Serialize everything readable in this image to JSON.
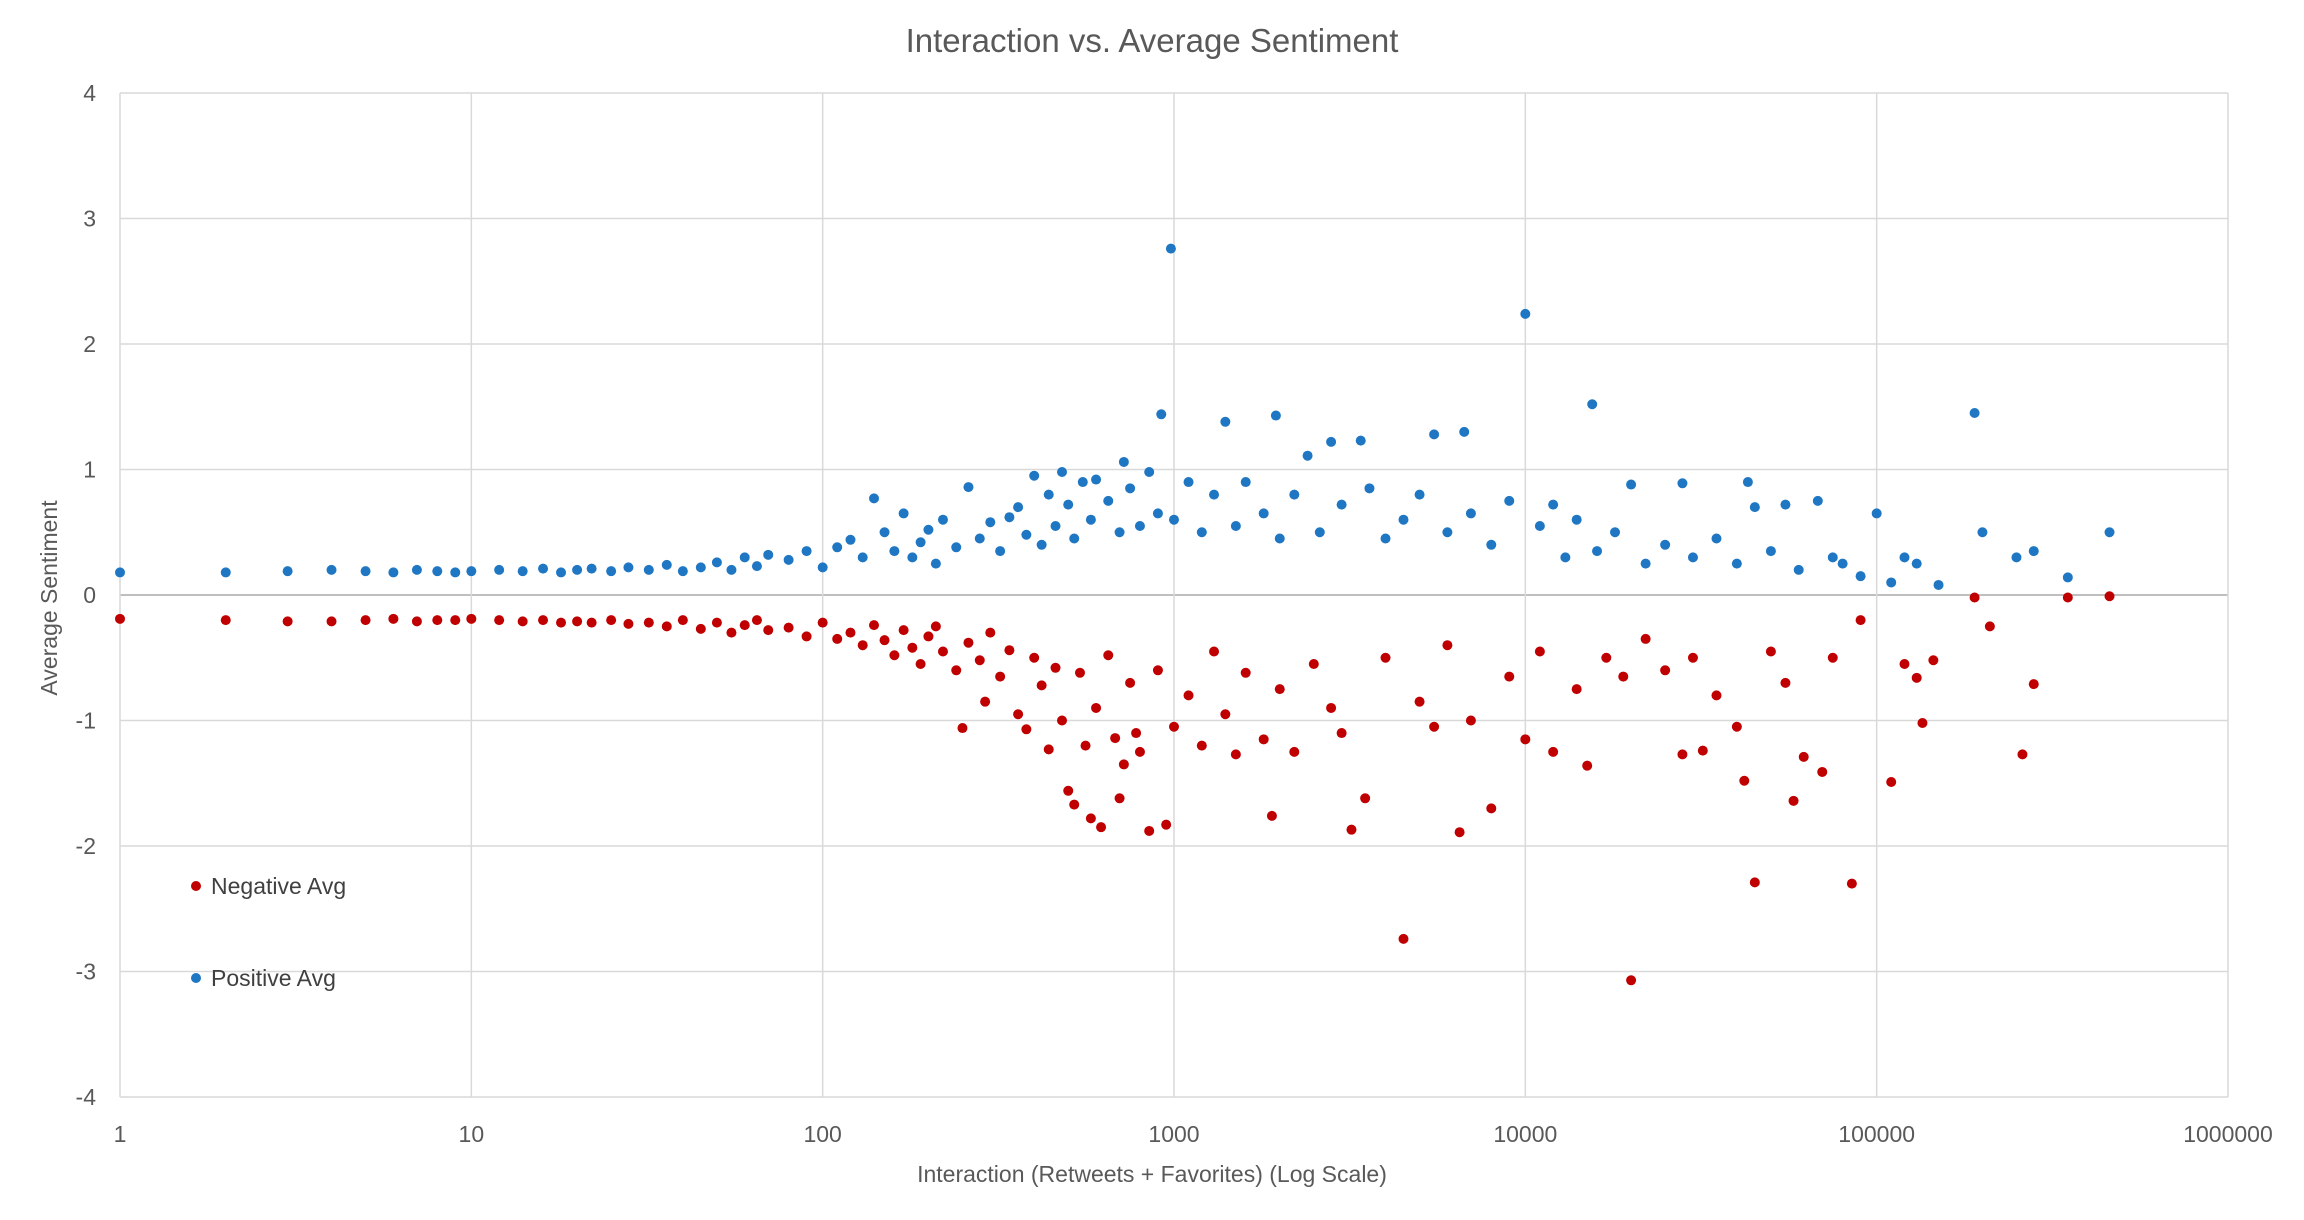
{
  "chart_data": {
    "type": "scatter",
    "title": "Interaction vs. Average Sentiment",
    "xlabel": "Interaction (Retweets + Favorites) (Log Scale)",
    "ylabel": "Average Sentiment",
    "x_scale": "log",
    "xlim": [
      1,
      1000000
    ],
    "ylim": [
      -4,
      4
    ],
    "x_ticks": [
      "1",
      "10",
      "100",
      "1000",
      "10000",
      "100000",
      "1000000"
    ],
    "y_ticks": [
      "4",
      "3",
      "2",
      "1",
      "0",
      "-1",
      "-2",
      "-3",
      "-4"
    ],
    "grid": true,
    "legend_position": "bottom-left",
    "series": [
      {
        "name": "Negative Avg",
        "color": "#c00000",
        "points": [
          [
            1,
            -0.19
          ],
          [
            2,
            -0.2
          ],
          [
            3,
            -0.21
          ],
          [
            4,
            -0.21
          ],
          [
            5,
            -0.2
          ],
          [
            6,
            -0.19
          ],
          [
            7,
            -0.21
          ],
          [
            8,
            -0.2
          ],
          [
            9,
            -0.2
          ],
          [
            10,
            -0.19
          ],
          [
            12,
            -0.2
          ],
          [
            14,
            -0.21
          ],
          [
            16,
            -0.2
          ],
          [
            18,
            -0.22
          ],
          [
            20,
            -0.21
          ],
          [
            22,
            -0.22
          ],
          [
            25,
            -0.2
          ],
          [
            28,
            -0.23
          ],
          [
            32,
            -0.22
          ],
          [
            36,
            -0.25
          ],
          [
            40,
            -0.2
          ],
          [
            45,
            -0.27
          ],
          [
            50,
            -0.22
          ],
          [
            55,
            -0.3
          ],
          [
            60,
            -0.24
          ],
          [
            65,
            -0.2
          ],
          [
            70,
            -0.28
          ],
          [
            80,
            -0.26
          ],
          [
            90,
            -0.33
          ],
          [
            100,
            -0.22
          ],
          [
            110,
            -0.35
          ],
          [
            120,
            -0.3
          ],
          [
            130,
            -0.4
          ],
          [
            140,
            -0.24
          ],
          [
            150,
            -0.36
          ],
          [
            160,
            -0.48
          ],
          [
            170,
            -0.28
          ],
          [
            180,
            -0.42
          ],
          [
            190,
            -0.55
          ],
          [
            200,
            -0.33
          ],
          [
            210,
            -0.25
          ],
          [
            220,
            -0.45
          ],
          [
            240,
            -0.6
          ],
          [
            250,
            -1.06
          ],
          [
            260,
            -0.38
          ],
          [
            280,
            -0.52
          ],
          [
            290,
            -0.85
          ],
          [
            300,
            -0.3
          ],
          [
            320,
            -0.65
          ],
          [
            340,
            -0.44
          ],
          [
            360,
            -0.95
          ],
          [
            380,
            -1.07
          ],
          [
            400,
            -0.5
          ],
          [
            420,
            -0.72
          ],
          [
            440,
            -1.23
          ],
          [
            460,
            -0.58
          ],
          [
            480,
            -1.0
          ],
          [
            500,
            -1.56
          ],
          [
            520,
            -1.67
          ],
          [
            540,
            -0.62
          ],
          [
            560,
            -1.2
          ],
          [
            580,
            -1.78
          ],
          [
            600,
            -0.9
          ],
          [
            620,
            -1.85
          ],
          [
            650,
            -0.48
          ],
          [
            680,
            -1.14
          ],
          [
            700,
            -1.62
          ],
          [
            720,
            -1.35
          ],
          [
            750,
            -0.7
          ],
          [
            780,
            -1.1
          ],
          [
            800,
            -1.25
          ],
          [
            850,
            -1.88
          ],
          [
            900,
            -0.6
          ],
          [
            950,
            -1.83
          ],
          [
            1000,
            -1.05
          ],
          [
            1100,
            -0.8
          ],
          [
            1200,
            -1.2
          ],
          [
            1300,
            -0.45
          ],
          [
            1400,
            -0.95
          ],
          [
            1500,
            -1.27
          ],
          [
            1600,
            -0.62
          ],
          [
            1800,
            -1.15
          ],
          [
            1900,
            -1.76
          ],
          [
            2000,
            -0.75
          ],
          [
            2200,
            -1.25
          ],
          [
            2500,
            -0.55
          ],
          [
            2800,
            -0.9
          ],
          [
            3000,
            -1.1
          ],
          [
            3200,
            -1.87
          ],
          [
            3500,
            -1.62
          ],
          [
            4000,
            -0.5
          ],
          [
            4500,
            -2.74
          ],
          [
            5000,
            -0.85
          ],
          [
            5500,
            -1.05
          ],
          [
            6000,
            -0.4
          ],
          [
            6500,
            -1.89
          ],
          [
            7000,
            -1.0
          ],
          [
            8000,
            -1.7
          ],
          [
            9000,
            -0.65
          ],
          [
            10000,
            -1.15
          ],
          [
            11000,
            -0.45
          ],
          [
            12000,
            -1.25
          ],
          [
            14000,
            -0.75
          ],
          [
            15000,
            -1.36
          ],
          [
            17000,
            -0.5
          ],
          [
            19000,
            -0.65
          ],
          [
            20000,
            -3.07
          ],
          [
            22000,
            -0.35
          ],
          [
            25000,
            -0.6
          ],
          [
            28000,
            -1.27
          ],
          [
            30000,
            -0.5
          ],
          [
            32000,
            -1.24
          ],
          [
            35000,
            -0.8
          ],
          [
            40000,
            -1.05
          ],
          [
            42000,
            -1.48
          ],
          [
            45000,
            -2.29
          ],
          [
            50000,
            -0.45
          ],
          [
            55000,
            -0.7
          ],
          [
            58000,
            -1.64
          ],
          [
            62000,
            -1.29
          ],
          [
            70000,
            -1.41
          ],
          [
            75000,
            -0.5
          ],
          [
            85000,
            -2.3
          ],
          [
            90000,
            -0.2
          ],
          [
            110000,
            -1.49
          ],
          [
            120000,
            -0.55
          ],
          [
            130000,
            -0.66
          ],
          [
            135000,
            -1.02
          ],
          [
            145000,
            -0.52
          ],
          [
            190000,
            -0.02
          ],
          [
            210000,
            -0.25
          ],
          [
            260000,
            -1.27
          ],
          [
            280000,
            -0.71
          ],
          [
            350000,
            -0.02
          ],
          [
            460000,
            -0.01
          ]
        ]
      },
      {
        "name": "Positive Avg",
        "color": "#1f77c4",
        "points": [
          [
            1,
            0.18
          ],
          [
            2,
            0.18
          ],
          [
            3,
            0.19
          ],
          [
            4,
            0.2
          ],
          [
            5,
            0.19
          ],
          [
            6,
            0.18
          ],
          [
            7,
            0.2
          ],
          [
            8,
            0.19
          ],
          [
            9,
            0.18
          ],
          [
            10,
            0.19
          ],
          [
            12,
            0.2
          ],
          [
            14,
            0.19
          ],
          [
            16,
            0.21
          ],
          [
            18,
            0.18
          ],
          [
            20,
            0.2
          ],
          [
            22,
            0.21
          ],
          [
            25,
            0.19
          ],
          [
            28,
            0.22
          ],
          [
            32,
            0.2
          ],
          [
            36,
            0.24
          ],
          [
            40,
            0.19
          ],
          [
            45,
            0.22
          ],
          [
            50,
            0.26
          ],
          [
            55,
            0.2
          ],
          [
            60,
            0.3
          ],
          [
            65,
            0.23
          ],
          [
            70,
            0.32
          ],
          [
            80,
            0.28
          ],
          [
            90,
            0.35
          ],
          [
            100,
            0.22
          ],
          [
            110,
            0.38
          ],
          [
            120,
            0.44
          ],
          [
            130,
            0.3
          ],
          [
            140,
            0.77
          ],
          [
            150,
            0.5
          ],
          [
            160,
            0.35
          ],
          [
            170,
            0.65
          ],
          [
            180,
            0.3
          ],
          [
            190,
            0.42
          ],
          [
            200,
            0.52
          ],
          [
            210,
            0.25
          ],
          [
            220,
            0.6
          ],
          [
            240,
            0.38
          ],
          [
            260,
            0.86
          ],
          [
            280,
            0.45
          ],
          [
            300,
            0.58
          ],
          [
            320,
            0.35
          ],
          [
            340,
            0.62
          ],
          [
            360,
            0.7
          ],
          [
            380,
            0.48
          ],
          [
            400,
            0.95
          ],
          [
            420,
            0.4
          ],
          [
            440,
            0.8
          ],
          [
            460,
            0.55
          ],
          [
            480,
            0.98
          ],
          [
            500,
            0.72
          ],
          [
            520,
            0.45
          ],
          [
            550,
            0.9
          ],
          [
            580,
            0.6
          ],
          [
            600,
            0.92
          ],
          [
            650,
            0.75
          ],
          [
            700,
            0.5
          ],
          [
            720,
            1.06
          ],
          [
            750,
            0.85
          ],
          [
            800,
            0.55
          ],
          [
            850,
            0.98
          ],
          [
            900,
            0.65
          ],
          [
            920,
            1.44
          ],
          [
            980,
            2.76
          ],
          [
            1000,
            0.6
          ],
          [
            1100,
            0.9
          ],
          [
            1200,
            0.5
          ],
          [
            1300,
            0.8
          ],
          [
            1400,
            1.38
          ],
          [
            1500,
            0.55
          ],
          [
            1600,
            0.9
          ],
          [
            1800,
            0.65
          ],
          [
            1950,
            1.43
          ],
          [
            2000,
            0.45
          ],
          [
            2200,
            0.8
          ],
          [
            2400,
            1.11
          ],
          [
            2600,
            0.5
          ],
          [
            2800,
            1.22
          ],
          [
            3000,
            0.72
          ],
          [
            3400,
            1.23
          ],
          [
            3600,
            0.85
          ],
          [
            4000,
            0.45
          ],
          [
            4500,
            0.6
          ],
          [
            5000,
            0.8
          ],
          [
            5500,
            1.28
          ],
          [
            6000,
            0.5
          ],
          [
            6700,
            1.3
          ],
          [
            7000,
            0.65
          ],
          [
            8000,
            0.4
          ],
          [
            9000,
            0.75
          ],
          [
            10000,
            2.24
          ],
          [
            11000,
            0.55
          ],
          [
            12000,
            0.72
          ],
          [
            13000,
            0.3
          ],
          [
            14000,
            0.6
          ],
          [
            15500,
            1.52
          ],
          [
            16000,
            0.35
          ],
          [
            18000,
            0.5
          ],
          [
            20000,
            0.88
          ],
          [
            22000,
            0.25
          ],
          [
            25000,
            0.4
          ],
          [
            28000,
            0.89
          ],
          [
            30000,
            0.3
          ],
          [
            35000,
            0.45
          ],
          [
            40000,
            0.25
          ],
          [
            43000,
            0.9
          ],
          [
            45000,
            0.7
          ],
          [
            50000,
            0.35
          ],
          [
            55000,
            0.72
          ],
          [
            60000,
            0.2
          ],
          [
            68000,
            0.75
          ],
          [
            75000,
            0.3
          ],
          [
            80000,
            0.25
          ],
          [
            90000,
            0.15
          ],
          [
            100000,
            0.65
          ],
          [
            110000,
            0.1
          ],
          [
            120000,
            0.3
          ],
          [
            130000,
            0.25
          ],
          [
            150000,
            0.08
          ],
          [
            190000,
            1.45
          ],
          [
            200000,
            0.5
          ],
          [
            250000,
            0.3
          ],
          [
            280000,
            0.35
          ],
          [
            350000,
            0.14
          ],
          [
            460000,
            0.5
          ]
        ]
      }
    ]
  }
}
